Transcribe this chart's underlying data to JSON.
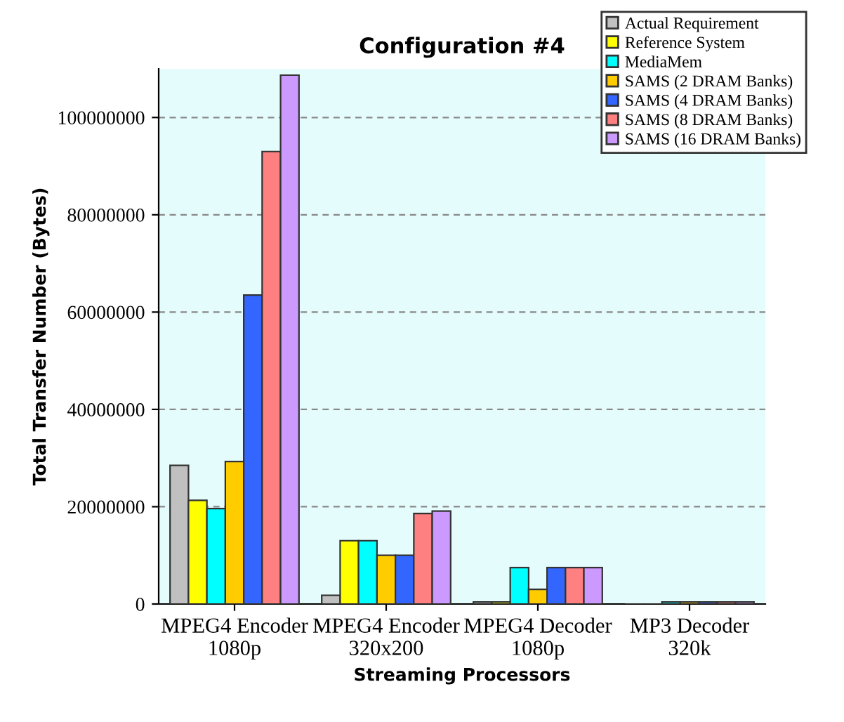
{
  "chart_data": {
    "type": "bar",
    "title": "Configuration #4",
    "xlabel": "Streaming Processors",
    "ylabel": "Total Transfer Number (Bytes)",
    "categories": [
      "MPEG4 Encoder\n1080p",
      "MPEG4 Encoder\n320x200",
      "MPEG4 Decoder\n1080p",
      "MP3 Decoder\n320k"
    ],
    "series": [
      {
        "name": "Actual Requirement",
        "color": "#c0c0c0",
        "values": [
          28500000,
          1800000,
          400000,
          null
        ]
      },
      {
        "name": "Reference System",
        "color": "#ffff00",
        "values": [
          21300000,
          13000000,
          400000,
          null
        ]
      },
      {
        "name": "MediaMem",
        "color": "#00ffff",
        "values": [
          19600000,
          13000000,
          7500000,
          400000
        ]
      },
      {
        "name": "SAMS (2 DRAM Banks)",
        "color": "#ffcc00",
        "values": [
          29300000,
          10000000,
          3000000,
          400000
        ]
      },
      {
        "name": "SAMS (4 DRAM Banks)",
        "color": "#3366ff",
        "values": [
          63500000,
          10000000,
          7500000,
          400000
        ]
      },
      {
        "name": "SAMS (8 DRAM Banks)",
        "color": "#ff8080",
        "values": [
          93000000,
          18600000,
          7500000,
          400000
        ]
      },
      {
        "name": "SAMS (16 DRAM Banks)",
        "color": "#cc99ff",
        "values": [
          108700000,
          19100000,
          7500000,
          400000
        ]
      }
    ],
    "ylim": [
      0,
      110000000
    ],
    "yticks": [
      0,
      20000000,
      40000000,
      60000000,
      80000000,
      100000000
    ],
    "grid": "y",
    "legend": "top right"
  }
}
